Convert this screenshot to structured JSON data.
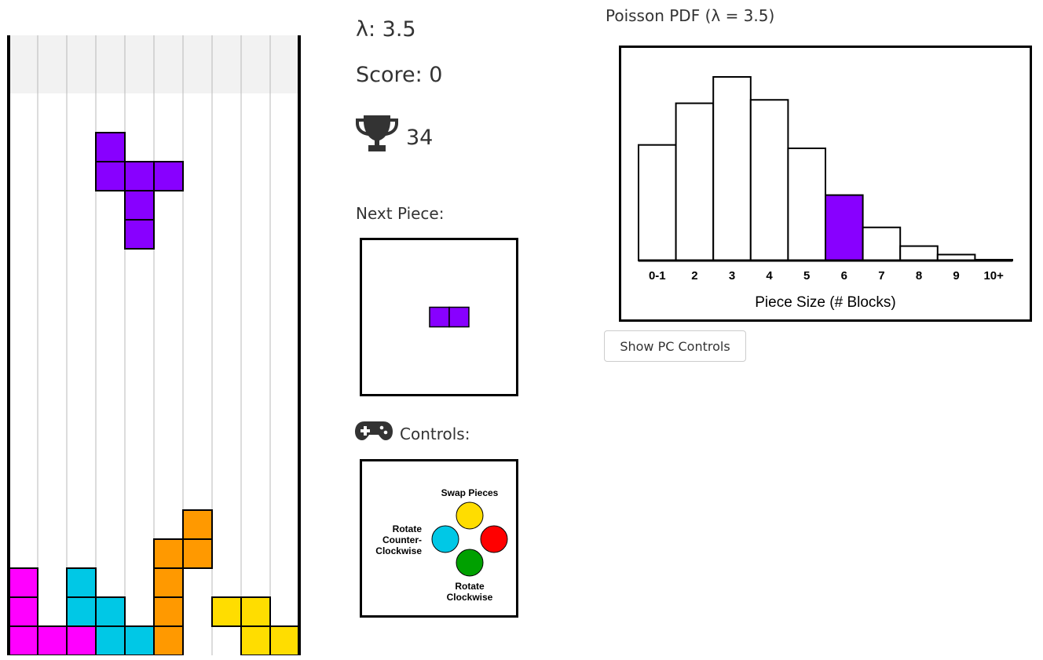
{
  "stats": {
    "lambda_label": "λ: 3.5",
    "score_label": "Score: 0",
    "best_score": "34"
  },
  "next_piece": {
    "label": "Next Piece:",
    "color": "#8800ff",
    "cells": [
      [
        0,
        0
      ],
      [
        1,
        0
      ]
    ]
  },
  "controls": {
    "label": "Controls:",
    "swap": "Swap Pieces",
    "rotate_ccw": [
      "Rotate",
      "Counter-",
      "Clockwise"
    ],
    "rotate_cw": [
      "Rotate",
      "Clockwise"
    ],
    "button_colors": {
      "top": "#ffdd00",
      "left": "#00c8e6",
      "right": "#ff0000",
      "bottom": "#00a000"
    }
  },
  "pc_button": "Show PC Controls",
  "board": {
    "cols": 10,
    "rows": 22,
    "hidden_rows": 2,
    "falling_piece": {
      "color": "#8800ff",
      "cells": [
        [
          3,
          4
        ],
        [
          3,
          5
        ],
        [
          4,
          5
        ],
        [
          5,
          5
        ],
        [
          4,
          6
        ],
        [
          4,
          7
        ]
      ]
    },
    "stack": [
      {
        "color": "#ff00ff",
        "cells": [
          [
            0,
            19
          ],
          [
            0,
            20
          ],
          [
            0,
            21
          ],
          [
            1,
            21
          ],
          [
            2,
            21
          ]
        ]
      },
      {
        "color": "#00c8e6",
        "cells": [
          [
            2,
            19
          ],
          [
            2,
            20
          ],
          [
            3,
            20
          ],
          [
            3,
            21
          ],
          [
            4,
            21
          ]
        ]
      },
      {
        "color": "#ff9900",
        "cells": [
          [
            6,
            17
          ],
          [
            6,
            18
          ],
          [
            5,
            18
          ],
          [
            5,
            19
          ],
          [
            5,
            20
          ],
          [
            5,
            21
          ]
        ]
      },
      {
        "color": "#ffdd00",
        "cells": [
          [
            7,
            20
          ],
          [
            8,
            20
          ],
          [
            8,
            21
          ],
          [
            9,
            21
          ]
        ]
      }
    ]
  },
  "chart_data": {
    "type": "bar",
    "title": "Poisson PDF (λ = 3.5)",
    "categories": [
      "0-1",
      "2",
      "3",
      "4",
      "5",
      "6",
      "7",
      "8",
      "9",
      "10+"
    ],
    "values": [
      0.136,
      0.185,
      0.216,
      0.189,
      0.132,
      0.077,
      0.039,
      0.017,
      0.007,
      0.001
    ],
    "xlabel": "Piece Size (# Blocks)",
    "ylabel": "",
    "ylim": [
      0,
      0.216
    ],
    "highlight_index": 5,
    "highlight_color": "#8800ff",
    "bar_color": "#ffffff"
  }
}
